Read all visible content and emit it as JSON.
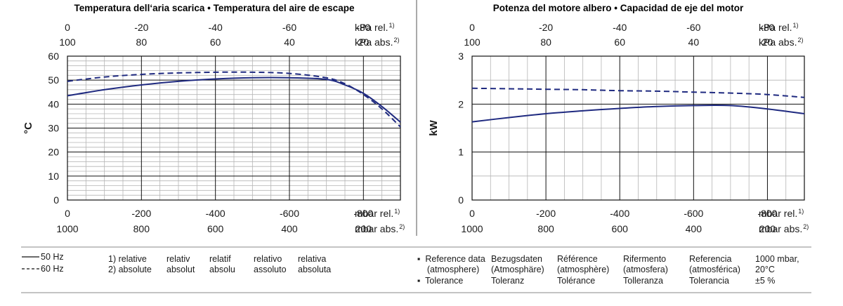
{
  "chart_data": [
    {
      "type": "line",
      "title": "Temperatura dell‘aria scarica  •  Temperatura del aire de escape",
      "ylabel": "°C",
      "ylim": [
        0,
        60
      ],
      "yticks": [
        "0",
        "10",
        "20",
        "30",
        "40",
        "50",
        "60"
      ],
      "xlim": [
        0,
        -900
      ],
      "bottom_ticks_rel": [
        "0",
        "-200",
        "-400",
        "-600",
        "-800"
      ],
      "bottom_ticks_abs": [
        "1000",
        "800",
        "600",
        "400",
        "200"
      ],
      "bottom_unit_rel": "mbar rel.",
      "bottom_unit_abs": "mbar abs.",
      "top_ticks_rel": [
        "0",
        "-20",
        "-40",
        "-60",
        "-80"
      ],
      "top_ticks_abs": [
        "100",
        "80",
        "60",
        "40",
        "20"
      ],
      "top_unit_rel": "kPa rel.",
      "top_unit_abs": "kPa abs.",
      "sup_rel": "1)",
      "sup_abs": "2)",
      "series": [
        {
          "name": "50 Hz",
          "x": [
            0,
            -100,
            -200,
            -300,
            -400,
            -500,
            -600,
            -700,
            -750,
            -800,
            -850,
            -900
          ],
          "y": [
            43.5,
            46.0,
            48.0,
            49.5,
            50.5,
            51.0,
            51.0,
            50.3,
            48.0,
            44.5,
            39.0,
            32.5
          ]
        },
        {
          "name": "60 Hz",
          "x": [
            0,
            -100,
            -200,
            -300,
            -400,
            -500,
            -600,
            -700,
            -750,
            -800,
            -850,
            -900
          ],
          "y": [
            49.5,
            51.3,
            52.4,
            53.0,
            53.3,
            53.3,
            52.8,
            51.0,
            48.5,
            44.0,
            38.0,
            30.5
          ]
        }
      ]
    },
    {
      "type": "line",
      "title": "Potenza del motore albero  •  Capacidad de eje del motor",
      "ylabel": "kW",
      "ylim": [
        0,
        3
      ],
      "yticks": [
        "0",
        "1",
        "2",
        "3"
      ],
      "xlim": [
        0,
        -900
      ],
      "bottom_ticks_rel": [
        "0",
        "-200",
        "-400",
        "-600",
        "-800"
      ],
      "bottom_ticks_abs": [
        "1000",
        "800",
        "600",
        "400",
        "200"
      ],
      "bottom_unit_rel": "mbar rel.",
      "bottom_unit_abs": "mbar abs.",
      "top_ticks_rel": [
        "0",
        "-20",
        "-40",
        "-60",
        "-80"
      ],
      "top_ticks_abs": [
        "100",
        "80",
        "60",
        "40",
        "20"
      ],
      "top_unit_rel": "kPa rel.",
      "top_unit_abs": "kPa abs.",
      "sup_rel": "1)",
      "sup_abs": "2)",
      "series": [
        {
          "name": "50 Hz",
          "x": [
            0,
            -100,
            -200,
            -300,
            -400,
            -500,
            -600,
            -700,
            -800,
            -900
          ],
          "y": [
            1.63,
            1.72,
            1.8,
            1.86,
            1.91,
            1.95,
            1.97,
            1.97,
            1.9,
            1.8
          ]
        },
        {
          "name": "60 Hz",
          "x": [
            0,
            -100,
            -200,
            -300,
            -400,
            -500,
            -600,
            -700,
            -800,
            -900
          ],
          "y": [
            2.33,
            2.32,
            2.31,
            2.3,
            2.28,
            2.27,
            2.25,
            2.23,
            2.2,
            2.14
          ]
        }
      ]
    }
  ],
  "legend": {
    "line_50": "50 Hz",
    "line_60": "60 Hz"
  },
  "notes": {
    "col1": [
      "1)  relative",
      "2)  absolute"
    ],
    "col2": [
      "relativ",
      "absolut"
    ],
    "col3": [
      "relatif",
      "absolu"
    ],
    "col4": [
      "relativo",
      "assoluto"
    ],
    "col5": [
      "relativa",
      "absoluta"
    ]
  },
  "reference": {
    "col1": [
      "▪  Reference data",
      "    (atmosphere)",
      "▪  Tolerance"
    ],
    "col2": [
      "Bezugsdaten",
      "(Atmosphäre)",
      "Toleranz"
    ],
    "col3": [
      "Référence",
      "(atmosphère)",
      "Tolérance"
    ],
    "col4": [
      "Rifermento",
      "(atmosfera)",
      "Tolleranza"
    ],
    "col5": [
      "Referencia",
      "(atmosférica)",
      "Tolerancia"
    ],
    "col6": [
      "1000 mbar,",
      "20°C",
      "±5 %"
    ]
  },
  "colors": {
    "line": "#1f2a80",
    "grid": "#b5b5b5",
    "axis": "#111111"
  }
}
